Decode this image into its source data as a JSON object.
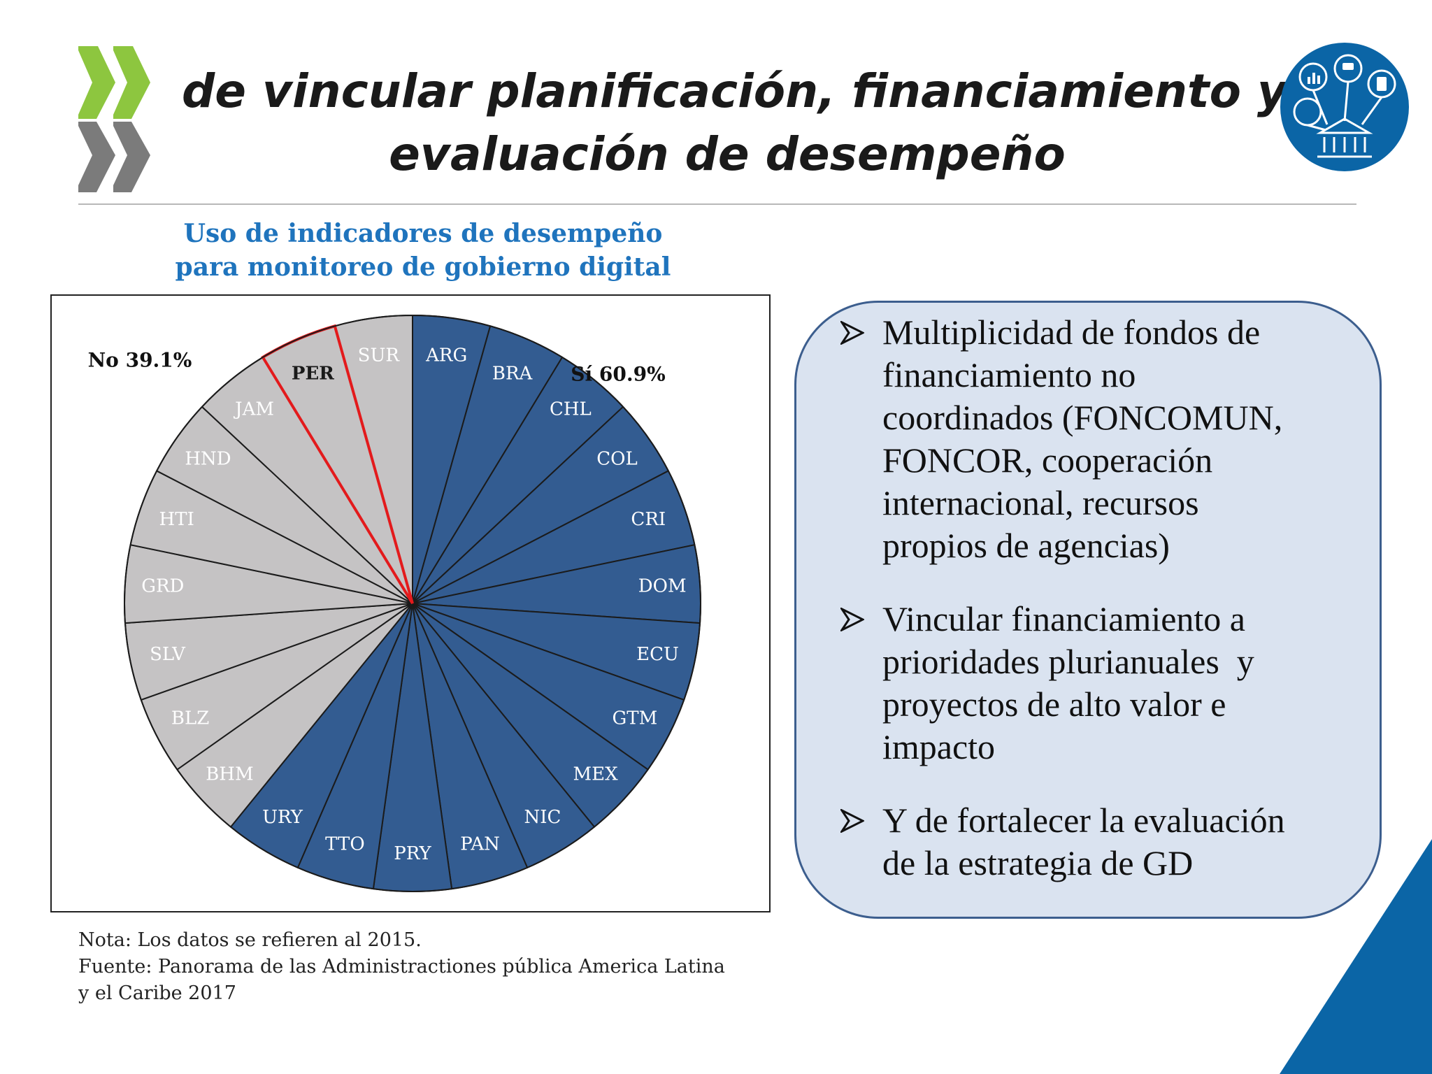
{
  "title_lines": [
    "de vincular planificación, financiamiento y",
    "evaluación de desempeño"
  ],
  "chart_title_lines": [
    "Uso de indicadores de desempeño",
    "para monitoreo de gobierno digital"
  ],
  "chart_data": {
    "type": "pie",
    "title": "Uso de indicadores de desempeño para monitoreo de gobierno digital",
    "series": [
      {
        "name": "Sí 60.9%",
        "color": "#335c91",
        "label_color": "#ffffff",
        "categories": [
          "ARG",
          "BRA",
          "CHL",
          "COL",
          "CRI",
          "DOM",
          "ECU",
          "GTM",
          "MEX",
          "NIC",
          "PAN",
          "PRY",
          "TTO",
          "URY"
        ]
      },
      {
        "name": "No 39.1%",
        "color": "#c5c3c4",
        "label_color": "#ffffff",
        "categories": [
          "BHM",
          "BLZ",
          "SLV",
          "GRD",
          "HTI",
          "HND",
          "JAM",
          "PER",
          "SUR"
        ]
      }
    ],
    "slice_value": 1,
    "highlight": {
      "category": "PER",
      "border_color": "#e31a1c",
      "label_color": "#1a1a1a"
    },
    "legend_labels": [
      "Sí 60.9%",
      "No 39.1%"
    ]
  },
  "note_lines": [
    "Nota: Los datos se refieren al 2015.",
    "Fuente: Panorama de las Administractiones pública America Latina",
    "y el Caribe 2017"
  ],
  "bullets": [
    [
      "Multiplicidad de fondos de",
      "financiamiento no",
      "coordinados (FONCOMUN,",
      "FONCOR, cooperación",
      "internacional, recursos",
      "propios de agencias)"
    ],
    [
      "Vincular financiamiento a",
      "prioridades plurianuales  y",
      "proyectos de alto valor e",
      "impacto"
    ],
    [
      "Y de fortalecer la evaluación",
      "de la estrategia de GD"
    ]
  ],
  "colors": {
    "oecd_green": "#8dc63f",
    "oecd_grey": "#7b7b7b",
    "accent_blue": "#1f74bd",
    "corner_blue": "#0b65a6"
  },
  "icons": {
    "logo": "oecd-chevron-logo",
    "badge": "digital-government-icon",
    "bullet": "arrow-bullet-icon"
  }
}
